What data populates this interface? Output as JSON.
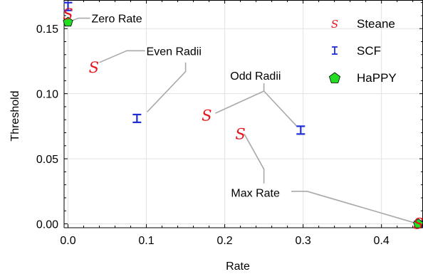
{
  "chart_data": {
    "type": "scatter",
    "xlabel": "Rate",
    "ylabel": "Threshold",
    "xlim": [
      -0.005,
      0.453
    ],
    "ylim": [
      -0.003,
      0.172
    ],
    "xticks": [
      0.0,
      0.1,
      0.2,
      0.3,
      0.4
    ],
    "xtick_labels": [
      "0.0",
      "0.1",
      "0.2",
      "0.3",
      "0.4"
    ],
    "yticks": [
      0.0,
      0.05,
      0.1,
      0.15
    ],
    "ytick_labels": [
      "0.00",
      "0.05",
      "0.10",
      "0.15"
    ],
    "grid": true,
    "legend_position": "top-right",
    "series": [
      {
        "name": "Steane",
        "marker": "S-glyph",
        "color": "#e8141c",
        "points": [
          {
            "x": 0.0,
            "y": 0.161
          },
          {
            "x": 0.033,
            "y": 0.12
          },
          {
            "x": 0.177,
            "y": 0.083
          },
          {
            "x": 0.22,
            "y": 0.069
          },
          {
            "x": 0.447,
            "y": 0.0
          }
        ]
      },
      {
        "name": "SCF",
        "marker": "errorbar",
        "color": "#1f2dd6",
        "points": [
          {
            "x": 0.0,
            "y": 0.167,
            "err": 0.003
          },
          {
            "x": 0.088,
            "y": 0.081,
            "err": 0.003
          },
          {
            "x": 0.297,
            "y": 0.072,
            "err": 0.003
          },
          {
            "x": 0.447,
            "y": 0.0,
            "err": 0.002
          }
        ]
      },
      {
        "name": "HaPPY",
        "marker": "pentagon",
        "color": "#22dd22",
        "points": [
          {
            "x": 0.0,
            "y": 0.155
          },
          {
            "x": 0.447,
            "y": 0.0
          }
        ]
      }
    ],
    "annotations": [
      {
        "text": "Zero Rate",
        "label_at": {
          "x": 0.03,
          "y": 0.158
        },
        "connectors": [
          [
            {
              "x": 0.03,
              "y": 0.158
            },
            {
              "x": 0.013,
              "y": 0.158
            },
            {
              "x": 0.0,
              "y": 0.155
            }
          ]
        ]
      },
      {
        "text": "Even Radii",
        "label_at": {
          "x": 0.1,
          "y": 0.133
        },
        "connectors": [
          [
            {
              "x": 0.1,
              "y": 0.133
            },
            {
              "x": 0.075,
              "y": 0.133
            },
            {
              "x": 0.04,
              "y": 0.124
            }
          ],
          [
            {
              "x": 0.15,
              "y": 0.124
            },
            {
              "x": 0.15,
              "y": 0.117
            },
            {
              "x": 0.101,
              "y": 0.086
            }
          ]
        ]
      },
      {
        "text": "Odd Radii",
        "label_at": {
          "x": 0.207,
          "y": 0.114
        },
        "connectors": [
          [
            {
              "x": 0.25,
              "y": 0.109
            },
            {
              "x": 0.25,
              "y": 0.102
            },
            {
              "x": 0.188,
              "y": 0.085
            }
          ],
          [
            {
              "x": 0.25,
              "y": 0.102
            },
            {
              "x": 0.292,
              "y": 0.075
            }
          ]
        ]
      },
      {
        "text": "Max Rate",
        "label_at": {
          "x": 0.208,
          "y": 0.024
        },
        "connectors": [
          [
            {
              "x": 0.25,
              "y": 0.031
            },
            {
              "x": 0.25,
              "y": 0.042
            },
            {
              "x": 0.225,
              "y": 0.069
            }
          ],
          [
            {
              "x": 0.285,
              "y": 0.025
            },
            {
              "x": 0.305,
              "y": 0.025
            },
            {
              "x": 0.441,
              "y": 0.001
            }
          ]
        ]
      }
    ]
  },
  "colors": {
    "connector": "#a9a9a9",
    "grid": "#e2e2e2",
    "axis": "#000000"
  }
}
